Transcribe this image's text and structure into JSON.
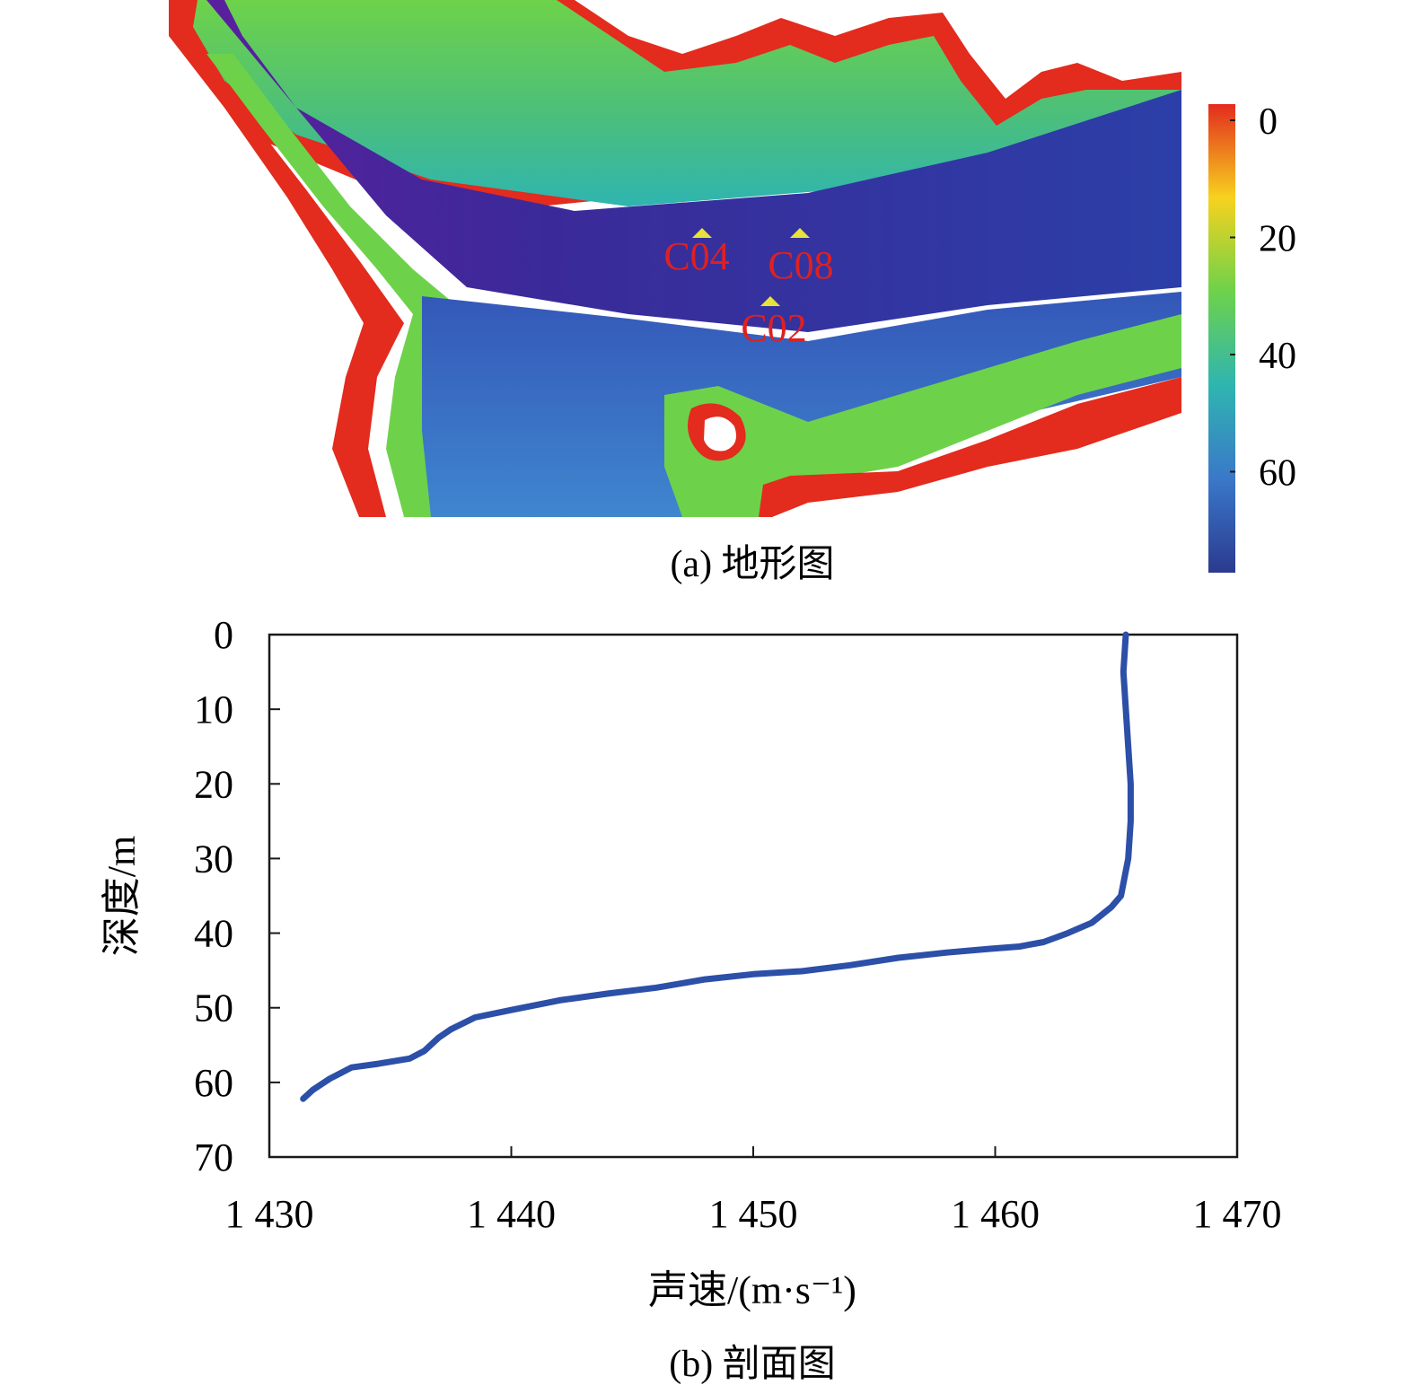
{
  "panel_a": {
    "caption": "(a) 地形图",
    "stations": [
      {
        "label": "C04",
        "marker_color": "#e8e23a",
        "label_color": "#e02020"
      },
      {
        "label": "C08",
        "marker_color": "#e8e23a",
        "label_color": "#e02020"
      },
      {
        "label": "C02",
        "marker_color": "#e8e23a",
        "label_color": "#e02020"
      }
    ],
    "colorbar": {
      "ticks": [
        "0",
        "20",
        "40",
        "60"
      ],
      "tick_values": [
        0,
        20,
        40,
        60
      ],
      "range": [
        0,
        80
      ],
      "colors": [
        "#e32b1e",
        "#f7d21e",
        "#6dd24a",
        "#2fb5b0",
        "#3a78c9",
        "#2b3a8f"
      ]
    }
  },
  "chart_data": {
    "type": "line",
    "caption": "(b) 剖面图",
    "xlabel": "声速/(m·s⁻¹)",
    "ylabel": "深度/m",
    "xlim": [
      1430,
      1470
    ],
    "ylim": [
      70,
      0
    ],
    "xticks": [
      "1 430",
      "1 440",
      "1 450",
      "1 460",
      "1 470"
    ],
    "xtick_values": [
      1430,
      1440,
      1450,
      1460,
      1470
    ],
    "yticks": [
      "0",
      "10",
      "20",
      "30",
      "40",
      "50",
      "60",
      "70"
    ],
    "ytick_values": [
      0,
      10,
      20,
      30,
      40,
      50,
      60,
      70
    ],
    "line_color": "#2c4fa8",
    "series": [
      {
        "x": [
          1465.4,
          1465.3,
          1465.4,
          1465.5,
          1465.6,
          1465.6,
          1465.5,
          1465.2,
          1464.8,
          1464.0,
          1463.0,
          1462.0,
          1461.0,
          1459.8,
          1458.0,
          1456.0,
          1454.0,
          1452.0,
          1450.0,
          1448.0,
          1446.0,
          1444.0,
          1442.0,
          1440.0,
          1438.5,
          1437.5,
          1437.0,
          1436.4,
          1435.8,
          1434.5,
          1433.4,
          1432.5,
          1431.8,
          1431.4
        ],
        "y": [
          0,
          5,
          10,
          15,
          20,
          25,
          30,
          35,
          36.5,
          38.6,
          40,
          41.2,
          41.8,
          42.1,
          42.6,
          43.3,
          44.3,
          45.1,
          45.5,
          46.2,
          47.3,
          48.1,
          49.0,
          50.3,
          51.3,
          52.9,
          54.0,
          55.8,
          56.8,
          57.5,
          58.0,
          59.5,
          61.0,
          62.2
        ]
      }
    ]
  }
}
